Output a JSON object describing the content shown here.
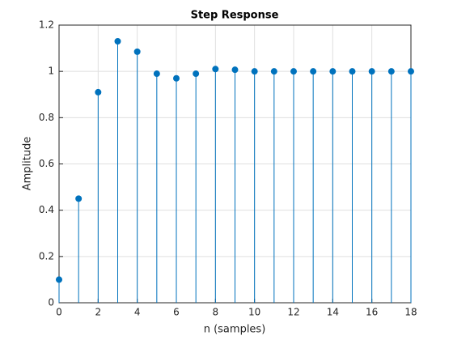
{
  "chart_data": {
    "type": "stem",
    "title": "Step Response",
    "x_label": "n (samples)",
    "y_label": "Amplitude",
    "x": [
      0,
      1,
      2,
      3,
      4,
      5,
      6,
      7,
      8,
      9,
      10,
      11,
      12,
      13,
      14,
      15,
      16,
      17,
      18
    ],
    "series": [
      {
        "name": "Step response",
        "color": "#0072bd",
        "values": [
          0.1,
          0.45,
          0.91,
          1.13,
          1.085,
          0.99,
          0.97,
          0.99,
          1.01,
          1.007,
          1.0,
          1.0,
          1.0,
          1.0,
          1.0,
          1.0,
          1.0,
          1.0,
          1.0
        ]
      }
    ],
    "xlim": [
      0,
      18
    ],
    "xticks": [
      0,
      2,
      4,
      6,
      8,
      10,
      12,
      14,
      16,
      18
    ],
    "ylim": [
      0,
      1.2
    ],
    "yticks": [
      0,
      0.2,
      0.4,
      0.6,
      0.8,
      1,
      1.2
    ],
    "grid": true
  }
}
